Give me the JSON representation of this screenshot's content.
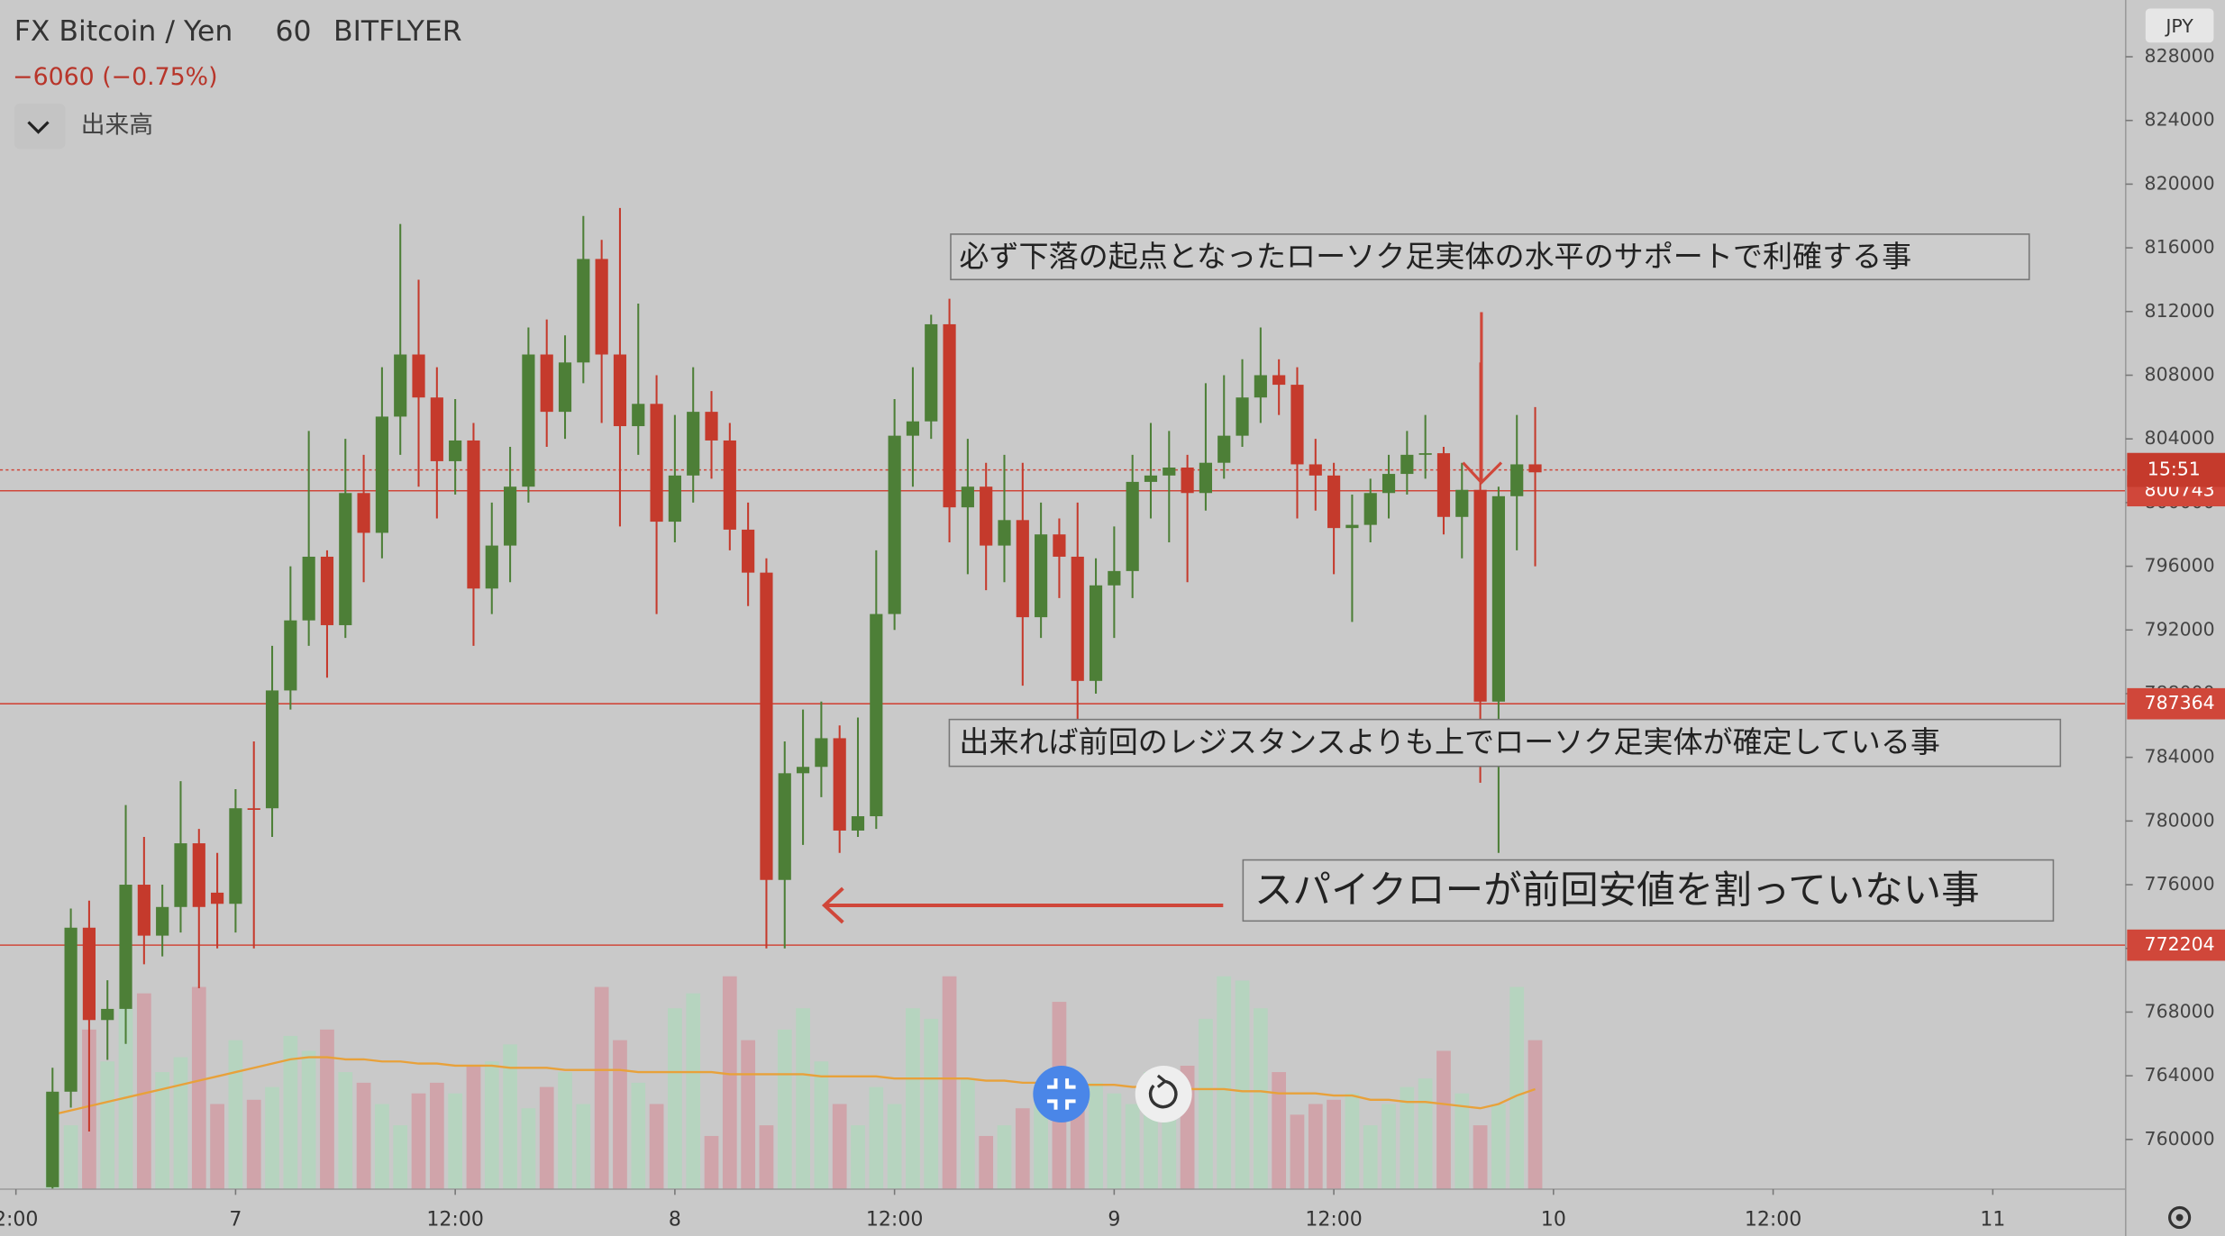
{
  "header": {
    "symbol": "FX Bitcoin / Yen",
    "interval": "60",
    "exchange": "BITFLYER",
    "change": "−6060 (−0.75%)",
    "indicator": "出来高"
  },
  "chart_data": {
    "type": "candlestick",
    "currency": "JPY",
    "x": [
      -10,
      -9,
      -8,
      -7,
      -6,
      -5,
      -4,
      -3,
      -2,
      -1,
      0,
      1,
      2,
      3,
      4,
      5,
      6,
      7,
      8,
      9,
      10,
      11,
      12,
      13,
      14,
      15,
      16,
      17,
      18,
      19,
      20,
      21,
      22,
      23,
      24,
      25,
      26,
      27,
      28,
      29,
      30,
      31,
      32,
      33,
      34,
      35,
      36,
      37,
      38,
      39,
      40,
      41,
      42,
      43,
      44,
      45,
      46,
      47,
      48,
      49,
      50,
      51,
      52,
      53,
      54,
      55,
      56,
      57,
      58,
      59,
      60,
      61,
      62,
      63,
      64,
      65,
      66,
      67,
      68,
      69,
      70,
      71
    ],
    "open": [
      757000,
      763000,
      773300,
      767500,
      768200,
      776000,
      772800,
      774600,
      778600,
      775500,
      774800,
      780800,
      780800,
      788200,
      792600,
      796600,
      792300,
      800600,
      798100,
      805400,
      809300,
      806600,
      802600,
      803900,
      794600,
      797300,
      801000,
      809300,
      805700,
      808800,
      815300,
      809300,
      804800,
      806200,
      798800,
      801700,
      805700,
      803900,
      798300,
      795600,
      776300,
      783000,
      783400,
      785200,
      779400,
      780300,
      793000,
      804200,
      805100,
      811200,
      799700,
      801000,
      797300,
      798900,
      792800,
      798000,
      796600,
      788800,
      794800,
      795700,
      801300,
      801700,
      802200,
      800600,
      802500,
      804200,
      806600,
      808000,
      807400,
      802400,
      801700,
      798400,
      798600,
      800600,
      801800,
      803000,
      803100,
      799100,
      800800,
      787500,
      800400,
      802400
    ],
    "high": [
      764500,
      774500,
      775000,
      770000,
      781000,
      779000,
      776000,
      782500,
      779500,
      778000,
      782000,
      785000,
      791000,
      796000,
      804500,
      797000,
      804000,
      803000,
      808500,
      817500,
      814000,
      808500,
      806500,
      805000,
      800000,
      803500,
      811000,
      811500,
      810500,
      818000,
      816500,
      818500,
      812500,
      808000,
      805500,
      808500,
      807000,
      805000,
      800000,
      796500,
      785000,
      787000,
      787500,
      786000,
      786500,
      797000,
      806500,
      808500,
      811800,
      812800,
      804000,
      802500,
      803000,
      802500,
      800000,
      799000,
      800000,
      796500,
      798500,
      803000,
      805000,
      804500,
      803000,
      807500,
      808000,
      809000,
      811000,
      809000,
      808500,
      804000,
      802500,
      800500,
      801500,
      803000,
      804500,
      805500,
      803500,
      802500,
      808800,
      801000,
      805500,
      806000
    ],
    "low": [
      756000,
      762000,
      760500,
      765000,
      766000,
      771000,
      771500,
      773000,
      769500,
      772000,
      773000,
      772000,
      779000,
      787000,
      791000,
      789000,
      791500,
      795000,
      796500,
      803000,
      801000,
      799000,
      800500,
      791000,
      793000,
      795000,
      800000,
      803500,
      804000,
      807500,
      805000,
      798500,
      803000,
      793000,
      797500,
      800000,
      801500,
      797000,
      793500,
      772000,
      772000,
      778500,
      781500,
      778000,
      779000,
      779500,
      792000,
      801000,
      804000,
      797500,
      795500,
      794500,
      795000,
      788500,
      791500,
      794000,
      786000,
      788000,
      791500,
      794000,
      799000,
      797500,
      795000,
      799500,
      801500,
      803500,
      805000,
      805500,
      799000,
      799500,
      795500,
      792500,
      797500,
      799000,
      800500,
      801500,
      798000,
      796500,
      782400,
      778000,
      797000,
      796000
    ],
    "close": [
      763000,
      773300,
      767500,
      768200,
      776000,
      772800,
      774600,
      778600,
      774600,
      774800,
      780800,
      780700,
      788200,
      792600,
      796600,
      792300,
      800600,
      798100,
      805400,
      809300,
      806600,
      802600,
      803900,
      794600,
      797300,
      801000,
      809300,
      805700,
      808800,
      815300,
      809300,
      804800,
      806200,
      798800,
      801700,
      805700,
      803900,
      798300,
      795600,
      776300,
      783000,
      783400,
      785200,
      779400,
      780300,
      793000,
      804200,
      805100,
      811200,
      799700,
      801000,
      797300,
      798900,
      792800,
      798000,
      796600,
      788800,
      794800,
      795700,
      801300,
      801700,
      802200,
      800600,
      802500,
      804200,
      806600,
      808000,
      807400,
      802400,
      801700,
      798400,
      798600,
      800600,
      801800,
      803000,
      803100,
      799100,
      800800,
      787500,
      800400,
      802400,
      801900
    ],
    "volume": [
      45,
      30,
      75,
      60,
      85,
      92,
      55,
      62,
      95,
      40,
      70,
      42,
      48,
      72,
      65,
      75,
      55,
      50,
      40,
      30,
      45,
      50,
      45,
      58,
      60,
      68,
      38,
      48,
      55,
      40,
      95,
      70,
      50,
      40,
      85,
      92,
      25,
      100,
      70,
      30,
      75,
      85,
      60,
      40,
      30,
      48,
      40,
      85,
      80,
      100,
      52,
      25,
      30,
      38,
      40,
      88,
      42,
      50,
      45,
      40,
      55,
      45,
      58,
      80,
      100,
      98,
      85,
      55,
      35,
      40,
      42,
      45,
      30,
      40,
      48,
      52,
      65,
      45,
      30,
      40,
      95,
      70
    ],
    "volume_ma": [
      35,
      37,
      39,
      41,
      43,
      45,
      47,
      49,
      51,
      53,
      55,
      57,
      59,
      61,
      62,
      62,
      61,
      61,
      60,
      60,
      59,
      59,
      58,
      58,
      58,
      57,
      57,
      57,
      56,
      56,
      56,
      56,
      55,
      55,
      55,
      55,
      55,
      54,
      54,
      54,
      54,
      54,
      53,
      53,
      53,
      53,
      52,
      52,
      52,
      52,
      52,
      51,
      51,
      50,
      50,
      50,
      49,
      49,
      49,
      48,
      48,
      48,
      47,
      47,
      47,
      46,
      46,
      45,
      45,
      45,
      44,
      44,
      42,
      42,
      41,
      41,
      40,
      39,
      38,
      40,
      44,
      47
    ],
    "up_color": "#4d7f37",
    "down_color": "#c53a2c",
    "up_volume_color": "#b6d4bf",
    "down_volume_color": "#d0a4aa",
    "ma_color": "#e8a13a",
    "line_color": "#d0473a",
    "xlim": [
      -12.87,
      103.26
    ],
    "ylim": [
      756877,
      831565
    ],
    "xticks": [
      {
        "value": -12,
        "label": "2:00"
      },
      {
        "value": 0,
        "label": "7"
      },
      {
        "value": 12,
        "label": "12:00"
      },
      {
        "value": 24,
        "label": "8"
      },
      {
        "value": 36,
        "label": "12:00"
      },
      {
        "value": 48,
        "label": "9"
      },
      {
        "value": 60,
        "label": "12:00"
      },
      {
        "value": 72,
        "label": "10"
      },
      {
        "value": 84,
        "label": "12:00"
      },
      {
        "value": 96,
        "label": "11"
      }
    ],
    "yticks": [
      760000,
      764000,
      768000,
      772000,
      776000,
      780000,
      784000,
      788000,
      792000,
      796000,
      800000,
      804000,
      808000,
      812000,
      816000,
      820000,
      824000,
      828000
    ],
    "hlines": [
      800743,
      787364,
      772204
    ],
    "last_price": 802050,
    "countdown": "15:51",
    "annotations": [
      "必ず下落の起点となったローソク足実体の水平のサポートで利確する事",
      "出来れば前回のレジスタンスよりも上でローソク足実体が確定している事",
      "スパイクローが前回安値を割っていない事"
    ]
  }
}
